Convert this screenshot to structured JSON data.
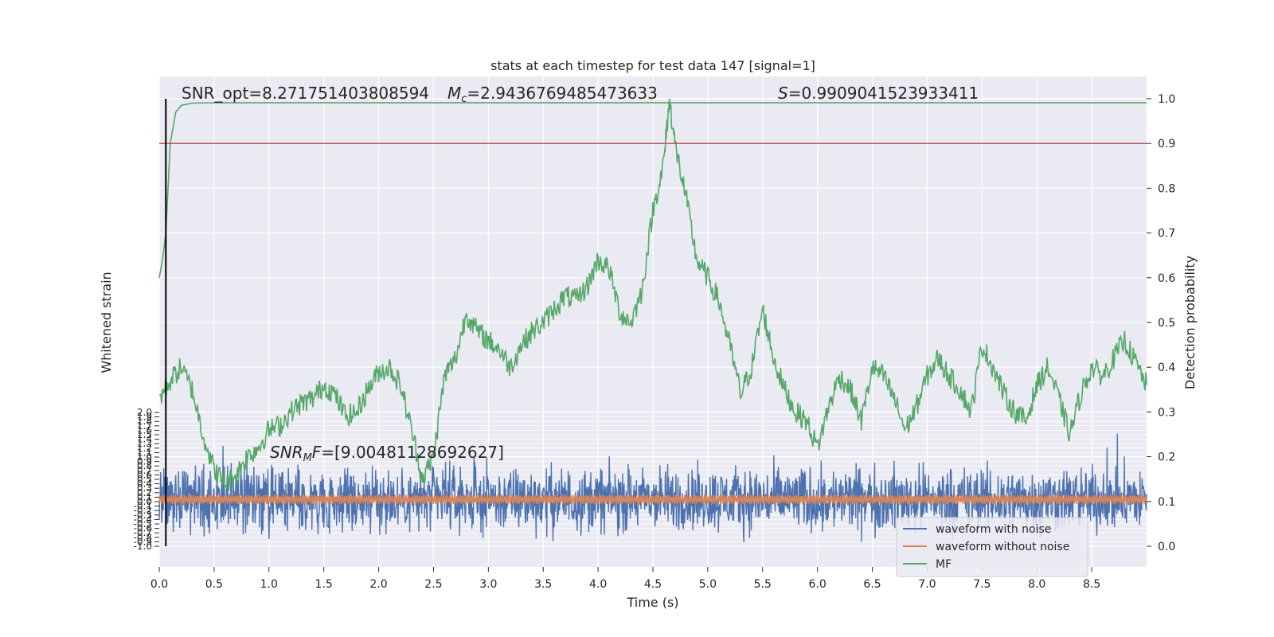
{
  "chart_data": {
    "type": "line",
    "title": "stats at each timestep for test data 147 [signal=1]",
    "xlabel": "Time (s)",
    "ylabel_left": "Whitened strain",
    "ylabel_right": "Detection probability",
    "xlim": [
      0.0,
      9.0
    ],
    "ylim_left": [
      -1.0,
      2.0
    ],
    "ylim_right": [
      0.0,
      1.0
    ],
    "x_ticks": [
      "0.0",
      "0.5",
      "1.0",
      "1.5",
      "2.0",
      "2.5",
      "3.0",
      "3.5",
      "4.0",
      "4.5",
      "5.0",
      "5.5",
      "6.0",
      "6.5",
      "7.0",
      "7.5",
      "8.0",
      "8.5"
    ],
    "x_tick_values": [
      0,
      0.5,
      1,
      1.5,
      2,
      2.5,
      3,
      3.5,
      4,
      4.5,
      5,
      5.5,
      6,
      6.5,
      7,
      7.5,
      8,
      8.5
    ],
    "right_ticks": [
      "0.0",
      "0.1",
      "0.2",
      "0.3",
      "0.4",
      "0.5",
      "0.6",
      "0.7",
      "0.8",
      "0.9",
      "1.0"
    ],
    "right_tick_values": [
      0,
      0.1,
      0.2,
      0.3,
      0.4,
      0.5,
      0.6,
      0.7,
      0.8,
      0.9,
      1.0
    ],
    "left_ticks": [
      "-1.0",
      "-0.9",
      "-0.8",
      "-0.7",
      "-0.6",
      "-0.5",
      "-0.4",
      "-0.3",
      "-0.2",
      "-0.1",
      "0.0",
      "0.1",
      "0.2",
      "0.3",
      "0.4",
      "0.5",
      "0.6",
      "0.7",
      "0.8",
      "0.9",
      "1.0",
      "1.1",
      "1.2",
      "1.3",
      "1.4",
      "1.5",
      "1.6",
      "1.7",
      "1.8",
      "1.9",
      "2.0"
    ],
    "annotations": {
      "snr_opt": "SNR_opt=8.271751403808594",
      "mc_prefix": "M",
      "mc_sub": "c",
      "mc_value": "=2.9436769485473633",
      "s_prefix": "S",
      "s_value": "=0.9909041523933411",
      "snrmf_prefix": "SNR",
      "snrmf_sub": "M",
      "snrmf_mid": "F",
      "snrmf_value": "=[9.00481128692627]"
    },
    "threshold": 0.9,
    "marker_time": 0.06,
    "legend": {
      "placement": "lower-right",
      "entries": [
        "waveform with noise",
        "waveform without noise",
        "MF"
      ]
    },
    "grid": true,
    "series": [
      {
        "name": "MF",
        "color": "#55a868",
        "axis": "right",
        "x": [
          0.0,
          0.03,
          0.06,
          0.1,
          0.15,
          0.2,
          0.3,
          0.5,
          1.0,
          9.0
        ],
        "values": [
          0.6,
          0.64,
          0.7,
          0.9,
          0.97,
          0.985,
          0.99,
          0.991,
          0.991,
          0.991
        ]
      },
      {
        "name": "MF",
        "color": "#55a868",
        "axis": "right",
        "x": [
          0.0,
          0.1,
          0.2,
          0.3,
          0.4,
          0.5,
          0.6,
          0.7,
          0.8,
          0.9,
          1.0,
          1.1,
          1.2,
          1.3,
          1.4,
          1.5,
          1.6,
          1.7,
          1.8,
          1.9,
          2.0,
          2.1,
          2.2,
          2.3,
          2.4,
          2.5,
          2.6,
          2.7,
          2.8,
          2.9,
          3.0,
          3.1,
          3.2,
          3.3,
          3.4,
          3.5,
          3.6,
          3.7,
          3.8,
          3.9,
          4.0,
          4.1,
          4.2,
          4.3,
          4.4,
          4.5,
          4.6,
          4.65,
          4.7,
          4.8,
          4.9,
          5.0,
          5.1,
          5.2,
          5.3,
          5.4,
          5.5,
          5.6,
          5.7,
          5.8,
          5.9,
          6.0,
          6.1,
          6.2,
          6.3,
          6.4,
          6.5,
          6.6,
          6.7,
          6.8,
          6.9,
          7.0,
          7.1,
          7.2,
          7.3,
          7.4,
          7.5,
          7.6,
          7.7,
          7.8,
          7.9,
          8.0,
          8.1,
          8.2,
          8.3,
          8.4,
          8.5,
          8.6,
          8.7,
          8.8,
          8.9,
          9.0
        ],
        "values": [
          0.33,
          0.37,
          0.4,
          0.35,
          0.25,
          0.17,
          0.14,
          0.16,
          0.2,
          0.22,
          0.26,
          0.27,
          0.3,
          0.32,
          0.33,
          0.36,
          0.34,
          0.29,
          0.3,
          0.35,
          0.39,
          0.4,
          0.36,
          0.26,
          0.15,
          0.2,
          0.38,
          0.42,
          0.52,
          0.48,
          0.46,
          0.44,
          0.4,
          0.45,
          0.48,
          0.5,
          0.53,
          0.56,
          0.55,
          0.58,
          0.64,
          0.62,
          0.52,
          0.5,
          0.57,
          0.75,
          0.86,
          1.0,
          0.9,
          0.78,
          0.64,
          0.6,
          0.55,
          0.45,
          0.34,
          0.4,
          0.53,
          0.42,
          0.35,
          0.3,
          0.28,
          0.22,
          0.31,
          0.38,
          0.35,
          0.28,
          0.4,
          0.38,
          0.33,
          0.26,
          0.31,
          0.38,
          0.42,
          0.38,
          0.35,
          0.3,
          0.45,
          0.4,
          0.34,
          0.3,
          0.28,
          0.36,
          0.4,
          0.33,
          0.25,
          0.34,
          0.4,
          0.38,
          0.42,
          0.46,
          0.41,
          0.36
        ]
      },
      {
        "name": "waveform with noise",
        "color": "#4c72b0",
        "axis": "left",
        "noise_amplitude": 0.7,
        "center": 0.05
      },
      {
        "name": "waveform without noise",
        "color": "#dd8452",
        "axis": "left",
        "center": 0.05,
        "half_width": 0.1
      }
    ]
  },
  "colors": {
    "background": "#eaeaf2",
    "grid": "#ffffff",
    "threshold_line": "#c44e52",
    "marker_line": "#000000"
  }
}
